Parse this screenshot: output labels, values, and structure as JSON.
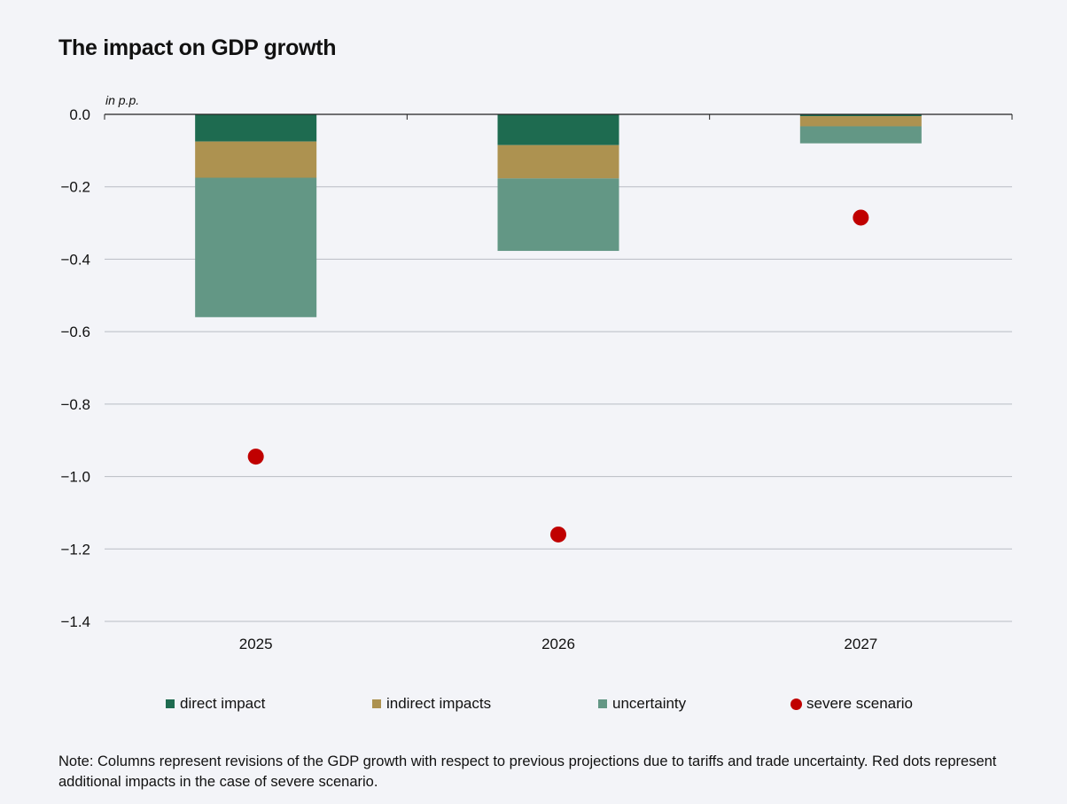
{
  "chart_data": {
    "type": "bar",
    "title": "The impact on GDP growth",
    "ylabel": "in p.p.",
    "xlabel": "",
    "categories": [
      "2025",
      "2026",
      "2027"
    ],
    "ylim": [
      -1.4,
      0.0
    ],
    "yticks": [
      0.0,
      -0.2,
      -0.4,
      -0.6,
      -0.8,
      -1.0,
      -1.2,
      -1.4
    ],
    "ytick_labels": [
      "0.0",
      "−0.2",
      "−0.4",
      "−0.6",
      "−0.8",
      "−1.0",
      "−1.2",
      "−1.4"
    ],
    "stacked": true,
    "grid": true,
    "legend_position": "bottom",
    "series": [
      {
        "name": "direct impact",
        "kind": "bar",
        "color": "#1e6b50",
        "values": [
          -0.075,
          -0.085,
          -0.005
        ]
      },
      {
        "name": "indirect impacts",
        "kind": "bar",
        "color": "#ad9250",
        "values": [
          -0.1,
          -0.092,
          -0.028
        ]
      },
      {
        "name": "uncertainty",
        "kind": "bar",
        "color": "#639785",
        "values": [
          -0.385,
          -0.2,
          -0.047
        ]
      },
      {
        "name": "severe scenario",
        "kind": "dot",
        "color": "#c00000",
        "values": [
          -0.945,
          -1.16,
          -0.285
        ]
      }
    ]
  },
  "note": "Note: Columns represent revisions of the GDP growth with respect to previous projections due to tariffs and trade uncertainty. Red dots represent additional impacts in the case of severe scenario."
}
